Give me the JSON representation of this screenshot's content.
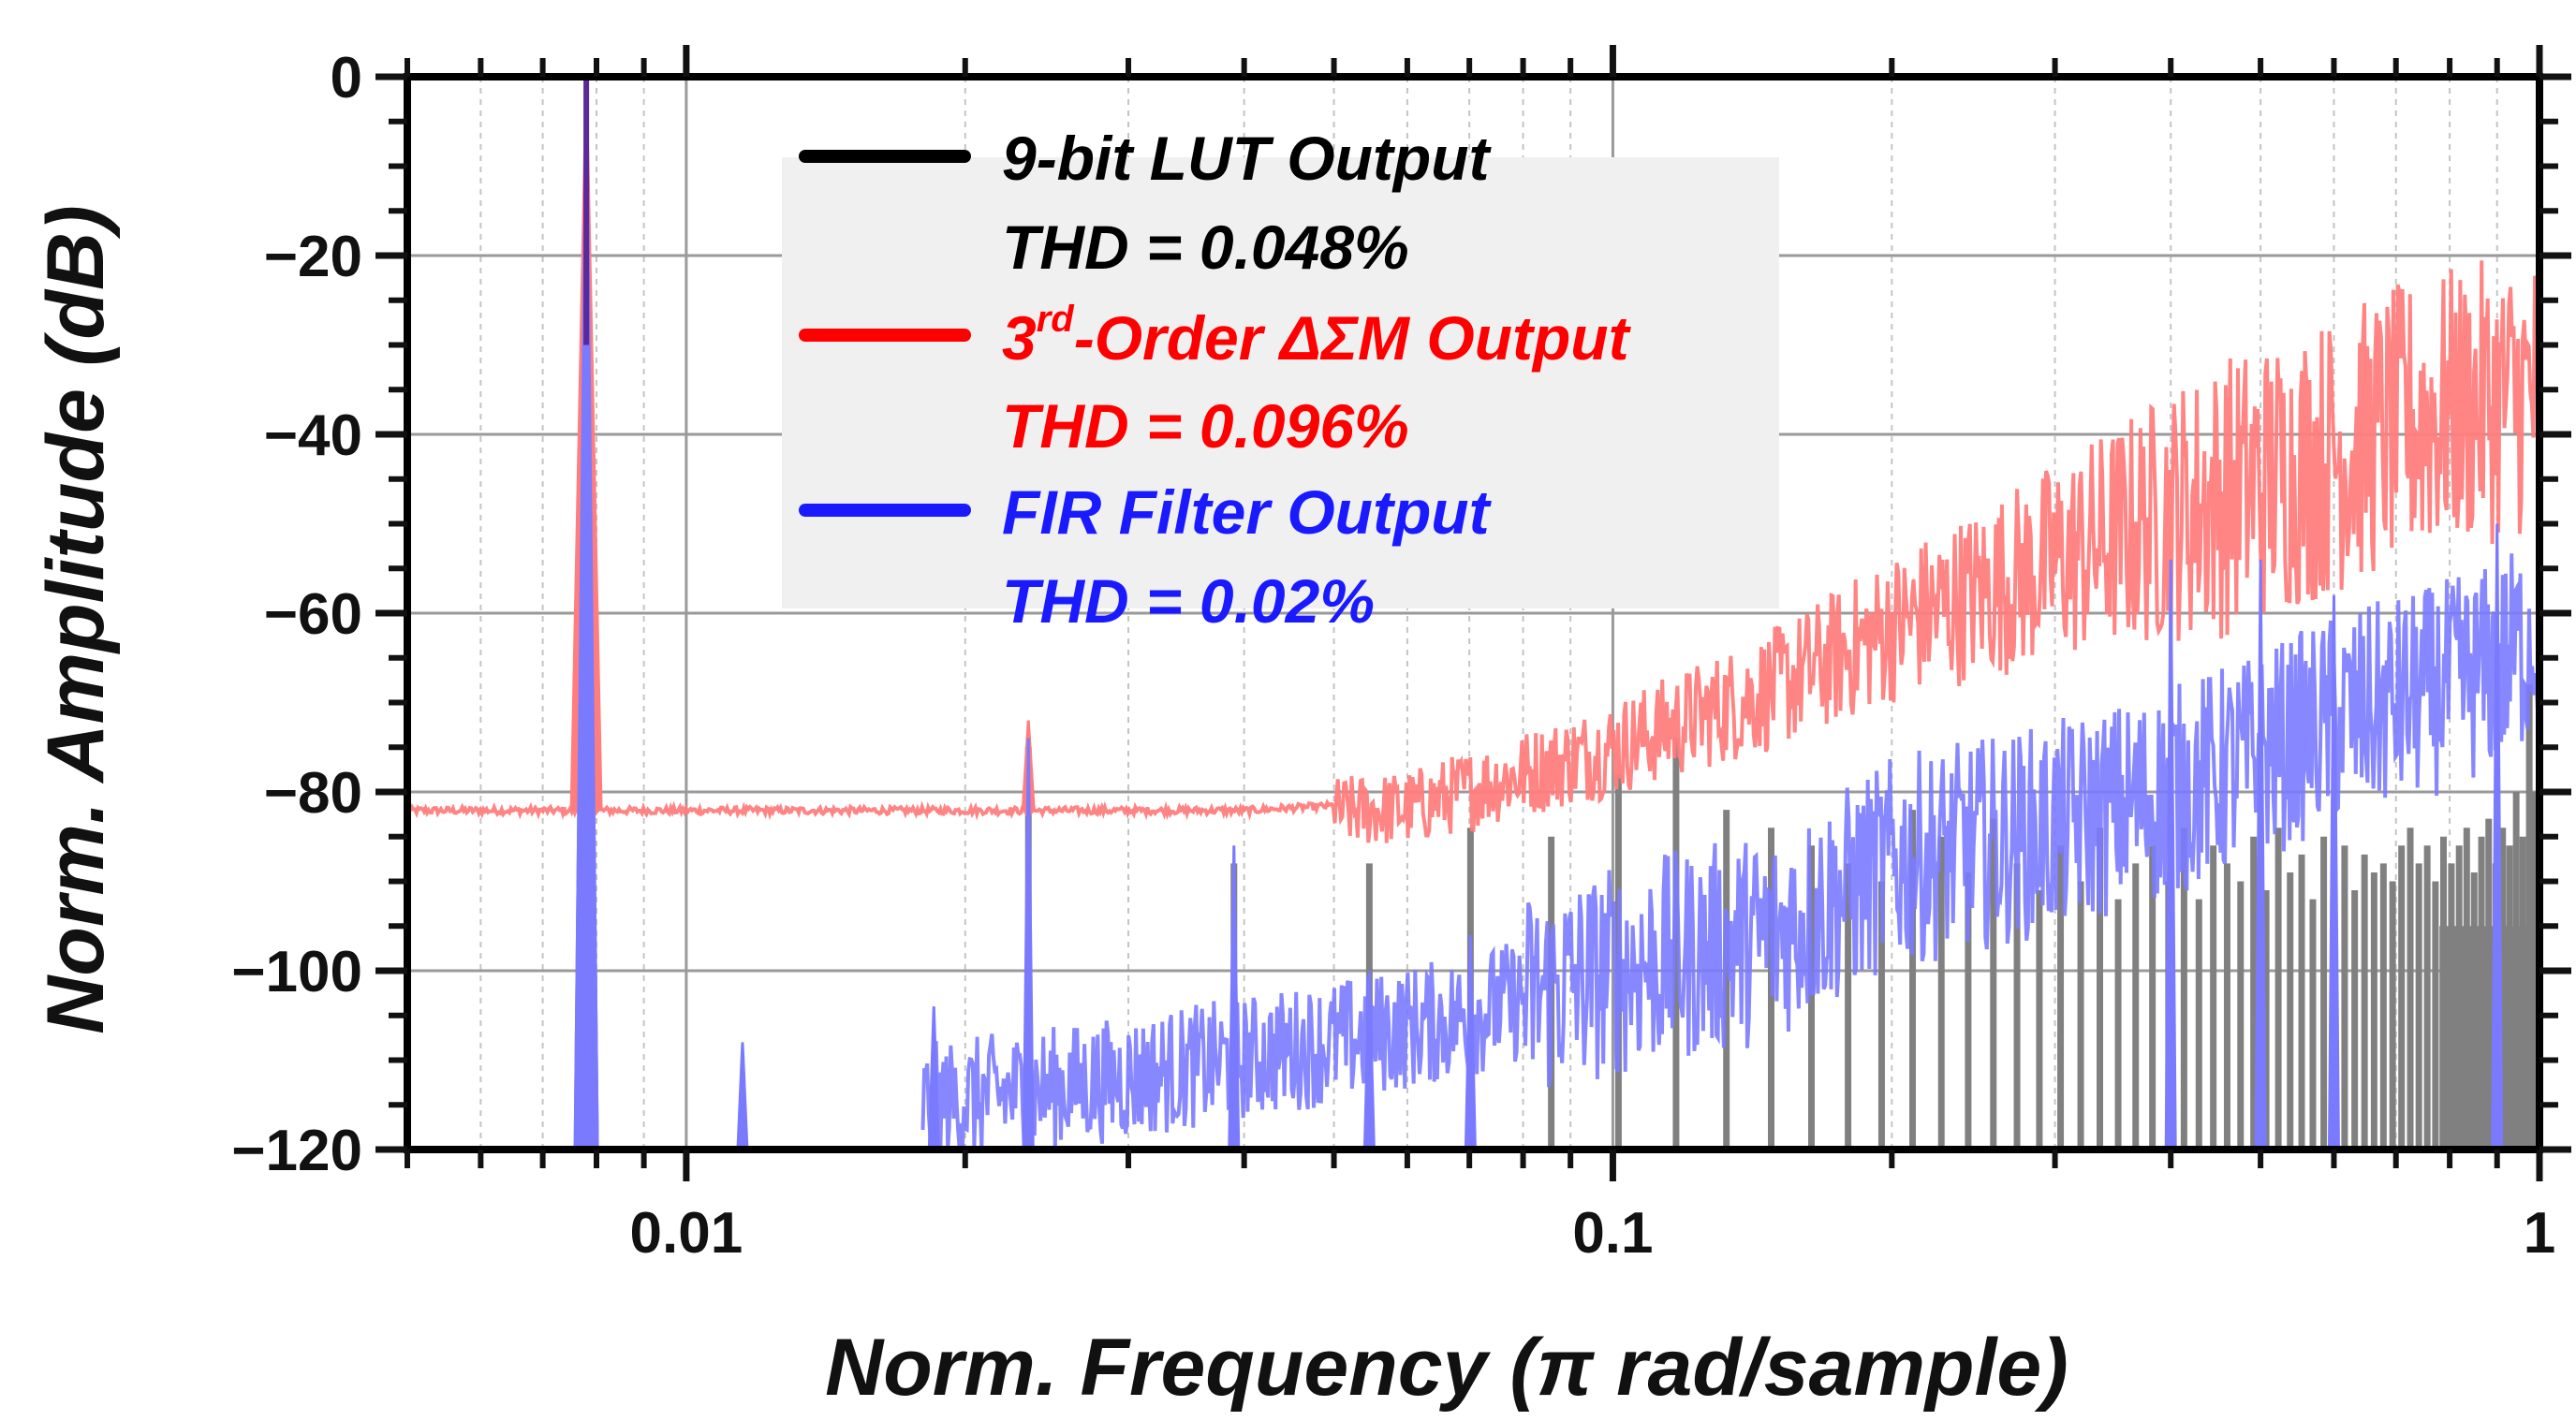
{
  "chart_data": {
    "type": "line",
    "title": "",
    "xlabel": "Norm. Frequency (π rad/sample)",
    "ylabel": "Norm. Amplitude (dB)",
    "xscale": "log",
    "xlim": [
      0.005,
      1
    ],
    "ylim": [
      -120,
      0
    ],
    "xticks": [
      0.01,
      0.1,
      1
    ],
    "xtick_labels": [
      "0.01",
      "0.1",
      "1"
    ],
    "yticks": [
      0,
      -20,
      -40,
      -60,
      -80,
      -100,
      -120
    ],
    "ytick_labels": [
      "0",
      "−20",
      "−40",
      "−60",
      "−80",
      "−100",
      "−120"
    ],
    "grid": true,
    "legend_position": "top-center",
    "colors": {
      "lut": "#000000",
      "dsm": "#ff0000",
      "fir": "#1a1aff",
      "lut_trace": "#808080",
      "dsm_trace": "#ff7d7d",
      "fir_trace": "#7a7aff"
    },
    "legend": [
      {
        "series": "lut",
        "label": "9-bit LUT Output",
        "thd": "THD = 0.048%"
      },
      {
        "series": "dsm",
        "label_pre": "3",
        "label_sup": "rd",
        "label_post": "-Order  ΔΣM Output",
        "thd": "THD = 0.096%"
      },
      {
        "series": "fir",
        "label": "FIR Filter Output",
        "thd": "THD = 0.02%"
      }
    ],
    "series": [
      {
        "name": "9-bit LUT Output",
        "key": "lut",
        "fundamental": {
          "x": 0.0078,
          "y": 0
        },
        "harmonics": [
          {
            "x": 0.0234,
            "y": -75
          },
          {
            "x": 0.039,
            "y": -88
          },
          {
            "x": 0.0546,
            "y": -88
          },
          {
            "x": 0.0702,
            "y": -84
          },
          {
            "x": 0.0858,
            "y": -85
          },
          {
            "x": 0.1014,
            "y": -78
          },
          {
            "x": 0.117,
            "y": -74
          },
          {
            "x": 0.1326,
            "y": -82
          },
          {
            "x": 0.1482,
            "y": -84
          },
          {
            "x": 0.1638,
            "y": -86
          },
          {
            "x": 0.1794,
            "y": -88
          },
          {
            "x": 0.195,
            "y": -90
          },
          {
            "x": 0.2106,
            "y": -82
          },
          {
            "x": 0.2262,
            "y": -85
          },
          {
            "x": 0.2418,
            "y": -89
          },
          {
            "x": 0.2574,
            "y": -83
          },
          {
            "x": 0.273,
            "y": -88
          },
          {
            "x": 0.2886,
            "y": -91
          },
          {
            "x": 0.3042,
            "y": -86
          },
          {
            "x": 0.3198,
            "y": -90
          },
          {
            "x": 0.3354,
            "y": -84
          },
          {
            "x": 0.351,
            "y": -92
          },
          {
            "x": 0.3666,
            "y": -88
          },
          {
            "x": 0.3822,
            "y": -86
          },
          {
            "x": 0.3978,
            "y": -90
          },
          {
            "x": 0.4134,
            "y": -84
          },
          {
            "x": 0.429,
            "y": -92
          },
          {
            "x": 0.4446,
            "y": -86
          },
          {
            "x": 0.4602,
            "y": -88
          },
          {
            "x": 0.4758,
            "y": -90
          },
          {
            "x": 0.4914,
            "y": -85
          },
          {
            "x": 0.507,
            "y": -91
          },
          {
            "x": 0.5226,
            "y": -84
          },
          {
            "x": 0.5382,
            "y": -89
          },
          {
            "x": 0.5538,
            "y": -87
          },
          {
            "x": 0.5694,
            "y": -92
          },
          {
            "x": 0.585,
            "y": -85
          },
          {
            "x": 0.6006,
            "y": -90
          },
          {
            "x": 0.6162,
            "y": -86
          },
          {
            "x": 0.6318,
            "y": -91
          },
          {
            "x": 0.6474,
            "y": -87
          },
          {
            "x": 0.663,
            "y": -89
          },
          {
            "x": 0.6786,
            "y": -88
          },
          {
            "x": 0.6942,
            "y": -90
          },
          {
            "x": 0.7098,
            "y": -86
          },
          {
            "x": 0.7254,
            "y": -84
          },
          {
            "x": 0.741,
            "y": -88
          },
          {
            "x": 0.7566,
            "y": -86
          },
          {
            "x": 0.7722,
            "y": -90
          },
          {
            "x": 0.7878,
            "y": -85
          },
          {
            "x": 0.8034,
            "y": -88
          },
          {
            "x": 0.819,
            "y": -86
          },
          {
            "x": 0.8346,
            "y": -84
          },
          {
            "x": 0.8502,
            "y": -89
          },
          {
            "x": 0.8658,
            "y": -85
          },
          {
            "x": 0.8814,
            "y": -83
          },
          {
            "x": 0.897,
            "y": -88
          },
          {
            "x": 0.9126,
            "y": -84
          },
          {
            "x": 0.9282,
            "y": -86
          },
          {
            "x": 0.9438,
            "y": -80
          },
          {
            "x": 0.9594,
            "y": -85
          },
          {
            "x": 0.975,
            "y": -68
          },
          {
            "x": 0.99,
            "y": -80
          }
        ]
      },
      {
        "name": "3rd-Order ΔΣM Output",
        "key": "dsm",
        "noise_floor": [
          {
            "x": 0.005,
            "y": -82
          },
          {
            "x": 0.02,
            "y": -82
          },
          {
            "x": 0.04,
            "y": -82
          },
          {
            "x": 0.06,
            "y": -81
          },
          {
            "x": 0.08,
            "y": -77
          },
          {
            "x": 0.1,
            "y": -74
          },
          {
            "x": 0.15,
            "y": -67
          },
          {
            "x": 0.2,
            "y": -60
          },
          {
            "x": 0.3,
            "y": -52
          },
          {
            "x": 0.4,
            "y": -46
          },
          {
            "x": 0.5,
            "y": -42
          },
          {
            "x": 0.6,
            "y": -39
          },
          {
            "x": 0.7,
            "y": -36
          },
          {
            "x": 0.8,
            "y": -34
          },
          {
            "x": 0.9,
            "y": -33
          },
          {
            "x": 1.0,
            "y": -32
          }
        ],
        "spikes": [
          {
            "x": 0.0078,
            "y": 0
          },
          {
            "x": 0.0234,
            "y": -72
          }
        ]
      },
      {
        "name": "FIR Filter Output",
        "key": "fir",
        "noise_floor": [
          {
            "x": 0.018,
            "y": -115
          },
          {
            "x": 0.03,
            "y": -112
          },
          {
            "x": 0.05,
            "y": -108
          },
          {
            "x": 0.07,
            "y": -105
          },
          {
            "x": 0.1,
            "y": -100
          },
          {
            "x": 0.15,
            "y": -96
          },
          {
            "x": 0.2,
            "y": -88
          },
          {
            "x": 0.3,
            "y": -84
          },
          {
            "x": 0.4,
            "y": -80
          },
          {
            "x": 0.5,
            "y": -76
          },
          {
            "x": 0.6,
            "y": -72
          },
          {
            "x": 0.7,
            "y": -70
          },
          {
            "x": 0.8,
            "y": -68
          },
          {
            "x": 0.9,
            "y": -66
          },
          {
            "x": 1.0,
            "y": -62
          }
        ],
        "spikes": [
          {
            "x": 0.0078,
            "y": 0
          },
          {
            "x": 0.0115,
            "y": -108
          },
          {
            "x": 0.0185,
            "y": -104
          },
          {
            "x": 0.0234,
            "y": -74
          },
          {
            "x": 0.039,
            "y": -86
          },
          {
            "x": 0.0546,
            "y": -100
          },
          {
            "x": 0.0702,
            "y": -96
          },
          {
            "x": 0.4,
            "y": -54
          },
          {
            "x": 0.5,
            "y": -54
          },
          {
            "x": 0.6,
            "y": -58
          },
          {
            "x": 0.9,
            "y": -50
          }
        ]
      }
    ]
  }
}
